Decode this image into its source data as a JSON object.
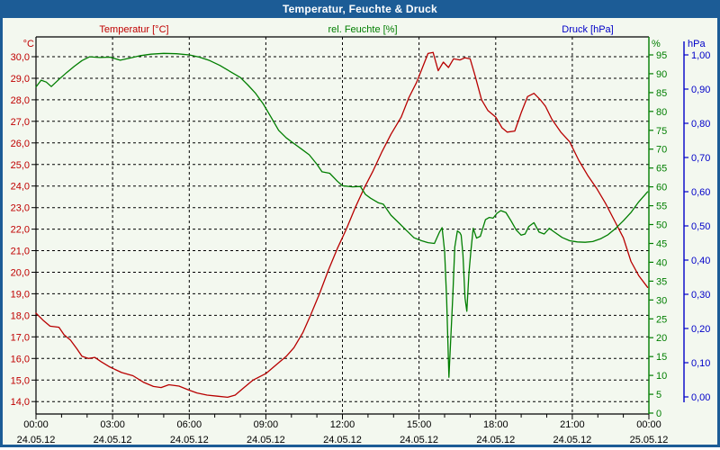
{
  "window": {
    "title": "Temperatur, Feuchte & Druck"
  },
  "colors": {
    "titlebar": "#1C5C96",
    "window_border": "#1C5C96",
    "background": "#F3F8EF",
    "grid": "#000000",
    "axis_black": "#000000",
    "time_text": "#000000",
    "temperature": "#B80000",
    "temperature_text": "#C00000",
    "humidity": "#007E00",
    "pressure": "#0000C8"
  },
  "chart_data": {
    "type": "line",
    "title": "Temperatur, Feuchte & Druck",
    "grid": "dashed",
    "legend_position": "top",
    "axes": {
      "x": {
        "label": "",
        "range_hours": [
          0,
          24
        ],
        "tick_interval_hours": 3,
        "minor_tick_interval_hours": 1,
        "ticks": [
          {
            "hour": 0,
            "time": "00:00",
            "date": "24.05.12"
          },
          {
            "hour": 3,
            "time": "03:00",
            "date": "24.05.12"
          },
          {
            "hour": 6,
            "time": "06:00",
            "date": "24.05.12"
          },
          {
            "hour": 9,
            "time": "09:00",
            "date": "24.05.12"
          },
          {
            "hour": 12,
            "time": "12:00",
            "date": "24.05.12"
          },
          {
            "hour": 15,
            "time": "15:00",
            "date": "24.05.12"
          },
          {
            "hour": 18,
            "time": "18:00",
            "date": "24.05.12"
          },
          {
            "hour": 21,
            "time": "21:00",
            "date": "24.05.12"
          },
          {
            "hour": 24,
            "time": "00:00",
            "date": "25.05.12"
          }
        ]
      },
      "temperature": {
        "label": "Temperatur [°C]",
        "unit": "°C",
        "min": 14.0,
        "max": 30.0,
        "tick_step": 1.0,
        "ticks": [
          {
            "value": 30,
            "label": "30,0"
          },
          {
            "value": 29,
            "label": "29,0"
          },
          {
            "value": 28,
            "label": "28,0"
          },
          {
            "value": 27,
            "label": "27,0"
          },
          {
            "value": 26,
            "label": "26,0"
          },
          {
            "value": 25,
            "label": "25,0"
          },
          {
            "value": 24,
            "label": "24,0"
          },
          {
            "value": 23,
            "label": "23,0"
          },
          {
            "value": 22,
            "label": "22,0"
          },
          {
            "value": 21,
            "label": "21,0"
          },
          {
            "value": 20,
            "label": "20,0"
          },
          {
            "value": 19,
            "label": "19,0"
          },
          {
            "value": 18,
            "label": "18,0"
          },
          {
            "value": 17,
            "label": "17,0"
          },
          {
            "value": 16,
            "label": "16,0"
          },
          {
            "value": 15,
            "label": "15,0"
          },
          {
            "value": 14,
            "label": "14,0"
          }
        ]
      },
      "humidity": {
        "label": "rel. Feuchte [%]",
        "unit": "%",
        "min": 0,
        "max": 95,
        "tick_step": 5,
        "ticks": [
          {
            "value": 95,
            "label": "95"
          },
          {
            "value": 90,
            "label": "90"
          },
          {
            "value": 85,
            "label": "85"
          },
          {
            "value": 80,
            "label": "80"
          },
          {
            "value": 75,
            "label": "75"
          },
          {
            "value": 70,
            "label": "70"
          },
          {
            "value": 65,
            "label": "65"
          },
          {
            "value": 60,
            "label": "60"
          },
          {
            "value": 55,
            "label": "55"
          },
          {
            "value": 50,
            "label": "50"
          },
          {
            "value": 45,
            "label": "45"
          },
          {
            "value": 40,
            "label": "40"
          },
          {
            "value": 35,
            "label": "35"
          },
          {
            "value": 30,
            "label": "30"
          },
          {
            "value": 25,
            "label": "25"
          },
          {
            "value": 20,
            "label": "20"
          },
          {
            "value": 15,
            "label": "15"
          },
          {
            "value": 10,
            "label": "10"
          },
          {
            "value": 5,
            "label": "5"
          },
          {
            "value": 0,
            "label": "0"
          }
        ]
      },
      "pressure": {
        "label": "Druck [hPa]",
        "unit": "hPa",
        "min": 0.0,
        "max": 1.0,
        "tick_step": 0.1,
        "ticks": [
          {
            "value": 1.0,
            "label": "1,00"
          },
          {
            "value": 0.9,
            "label": "0,90"
          },
          {
            "value": 0.8,
            "label": "0,80"
          },
          {
            "value": 0.7,
            "label": "0,70"
          },
          {
            "value": 0.6,
            "label": "0,60"
          },
          {
            "value": 0.5,
            "label": "0,50"
          },
          {
            "value": 0.4,
            "label": "0,40"
          },
          {
            "value": 0.3,
            "label": "0,30"
          },
          {
            "value": 0.2,
            "label": "0,20"
          },
          {
            "value": 0.1,
            "label": "0,10"
          },
          {
            "value": 0.0,
            "label": "0,00"
          }
        ]
      }
    },
    "series": [
      {
        "name": "Temperatur",
        "axis": "temperature",
        "color": "#B80000",
        "points": [
          [
            0,
            18.1
          ],
          [
            0.3,
            17.75
          ],
          [
            0.55,
            17.5
          ],
          [
            0.9,
            17.45
          ],
          [
            1.1,
            17.1
          ],
          [
            1.35,
            16.85
          ],
          [
            1.6,
            16.45
          ],
          [
            1.8,
            16.1
          ],
          [
            2.05,
            16.0
          ],
          [
            2.3,
            16.05
          ],
          [
            2.55,
            15.85
          ],
          [
            2.9,
            15.6
          ],
          [
            3.35,
            15.35
          ],
          [
            3.8,
            15.2
          ],
          [
            4.2,
            14.9
          ],
          [
            4.6,
            14.7
          ],
          [
            4.9,
            14.65
          ],
          [
            5.2,
            14.78
          ],
          [
            5.6,
            14.72
          ],
          [
            5.95,
            14.55
          ],
          [
            6.3,
            14.4
          ],
          [
            6.7,
            14.3
          ],
          [
            7.1,
            14.25
          ],
          [
            7.5,
            14.2
          ],
          [
            7.8,
            14.3
          ],
          [
            8.1,
            14.6
          ],
          [
            8.5,
            15.0
          ],
          [
            9.0,
            15.3
          ],
          [
            9.4,
            15.7
          ],
          [
            9.8,
            16.1
          ],
          [
            10.1,
            16.5
          ],
          [
            10.45,
            17.2
          ],
          [
            10.75,
            18.0
          ],
          [
            11.1,
            19.0
          ],
          [
            11.45,
            20.1
          ],
          [
            11.8,
            21.1
          ],
          [
            12.15,
            22.0
          ],
          [
            12.5,
            23.0
          ],
          [
            12.85,
            23.9
          ],
          [
            13.2,
            24.7
          ],
          [
            13.55,
            25.6
          ],
          [
            13.9,
            26.4
          ],
          [
            14.3,
            27.2
          ],
          [
            14.6,
            28.1
          ],
          [
            14.9,
            28.8
          ],
          [
            15.1,
            29.4
          ],
          [
            15.35,
            30.15
          ],
          [
            15.55,
            30.2
          ],
          [
            15.75,
            29.35
          ],
          [
            15.95,
            29.75
          ],
          [
            16.15,
            29.5
          ],
          [
            16.35,
            29.9
          ],
          [
            16.6,
            29.85
          ],
          [
            16.8,
            29.95
          ],
          [
            17.0,
            29.9
          ],
          [
            17.2,
            29.1
          ],
          [
            17.45,
            28.0
          ],
          [
            17.7,
            27.5
          ],
          [
            18.0,
            27.2
          ],
          [
            18.25,
            26.7
          ],
          [
            18.45,
            26.5
          ],
          [
            18.75,
            26.55
          ],
          [
            19.0,
            27.4
          ],
          [
            19.25,
            28.15
          ],
          [
            19.5,
            28.3
          ],
          [
            19.75,
            28.0
          ],
          [
            19.95,
            27.7
          ],
          [
            20.2,
            27.1
          ],
          [
            20.55,
            26.5
          ],
          [
            20.9,
            26.05
          ],
          [
            21.25,
            25.2
          ],
          [
            21.6,
            24.5
          ],
          [
            21.95,
            23.9
          ],
          [
            22.3,
            23.2
          ],
          [
            22.65,
            22.4
          ],
          [
            23.0,
            21.6
          ],
          [
            23.3,
            20.5
          ],
          [
            23.6,
            19.85
          ],
          [
            23.95,
            19.3
          ]
        ]
      },
      {
        "name": "rel. Feuchte",
        "axis": "humidity",
        "color": "#007E00",
        "points": [
          [
            0,
            86.5
          ],
          [
            0.2,
            88.3
          ],
          [
            0.4,
            87.8
          ],
          [
            0.6,
            86.6
          ],
          [
            0.9,
            88.5
          ],
          [
            1.2,
            90.3
          ],
          [
            1.5,
            92.0
          ],
          [
            1.8,
            93.5
          ],
          [
            2.1,
            94.5
          ],
          [
            2.5,
            94.3
          ],
          [
            2.9,
            94.4
          ],
          [
            3.3,
            93.6
          ],
          [
            3.7,
            94.2
          ],
          [
            4.1,
            94.8
          ],
          [
            4.5,
            95.2
          ],
          [
            5.0,
            95.4
          ],
          [
            5.5,
            95.3
          ],
          [
            6.0,
            95.0
          ],
          [
            6.4,
            94.4
          ],
          [
            6.8,
            93.5
          ],
          [
            7.2,
            92.2
          ],
          [
            7.6,
            90.6
          ],
          [
            8.0,
            89.0
          ],
          [
            8.3,
            87.0
          ],
          [
            8.6,
            84.8
          ],
          [
            8.9,
            82.0
          ],
          [
            9.2,
            78.5
          ],
          [
            9.5,
            75.0
          ],
          [
            9.8,
            73.0
          ],
          [
            10.1,
            71.5
          ],
          [
            10.4,
            70.0
          ],
          [
            10.7,
            68.5
          ],
          [
            11.0,
            66.0
          ],
          [
            11.2,
            64.0
          ],
          [
            11.5,
            63.6
          ],
          [
            11.8,
            61.5
          ],
          [
            12.0,
            60.3
          ],
          [
            12.4,
            60.0
          ],
          [
            12.7,
            60.1
          ],
          [
            12.9,
            58.0
          ],
          [
            13.1,
            57.0
          ],
          [
            13.4,
            55.8
          ],
          [
            13.6,
            55.4
          ],
          [
            13.9,
            52.5
          ],
          [
            14.2,
            50.5
          ],
          [
            14.5,
            48.5
          ],
          [
            14.8,
            46.5
          ],
          [
            15.1,
            45.7
          ],
          [
            15.35,
            45.2
          ],
          [
            15.6,
            45.0
          ],
          [
            15.8,
            48.0
          ],
          [
            15.9,
            49.2
          ],
          [
            16.0,
            43.0
          ],
          [
            16.08,
            30.0
          ],
          [
            16.17,
            9.5
          ],
          [
            16.25,
            21.0
          ],
          [
            16.32,
            31.0
          ],
          [
            16.4,
            44.0
          ],
          [
            16.5,
            48.3
          ],
          [
            16.6,
            47.8
          ],
          [
            16.65,
            47.2
          ],
          [
            16.72,
            42.0
          ],
          [
            16.8,
            30.5
          ],
          [
            16.87,
            27.0
          ],
          [
            16.95,
            37.0
          ],
          [
            17.03,
            43.0
          ],
          [
            17.12,
            49.0
          ],
          [
            17.25,
            46.4
          ],
          [
            17.4,
            46.9
          ],
          [
            17.6,
            51.3
          ],
          [
            17.75,
            51.9
          ],
          [
            17.9,
            51.7
          ],
          [
            18.05,
            53.0
          ],
          [
            18.2,
            53.7
          ],
          [
            18.4,
            53.2
          ],
          [
            18.6,
            51.0
          ],
          [
            18.8,
            48.6
          ],
          [
            19.0,
            47.2
          ],
          [
            19.15,
            47.5
          ],
          [
            19.3,
            49.5
          ],
          [
            19.5,
            50.5
          ],
          [
            19.7,
            48.0
          ],
          [
            19.9,
            47.5
          ],
          [
            20.1,
            49.0
          ],
          [
            20.3,
            48.0
          ],
          [
            20.6,
            46.6
          ],
          [
            20.9,
            45.7
          ],
          [
            21.2,
            45.4
          ],
          [
            21.5,
            45.3
          ],
          [
            21.8,
            45.5
          ],
          [
            22.1,
            46.2
          ],
          [
            22.4,
            47.3
          ],
          [
            22.7,
            49.0
          ],
          [
            23.0,
            51.0
          ],
          [
            23.3,
            53.2
          ],
          [
            23.6,
            56.0
          ],
          [
            23.95,
            58.7
          ]
        ]
      },
      {
        "name": "Druck",
        "axis": "pressure",
        "color": "#0000C8",
        "points": []
      }
    ]
  }
}
